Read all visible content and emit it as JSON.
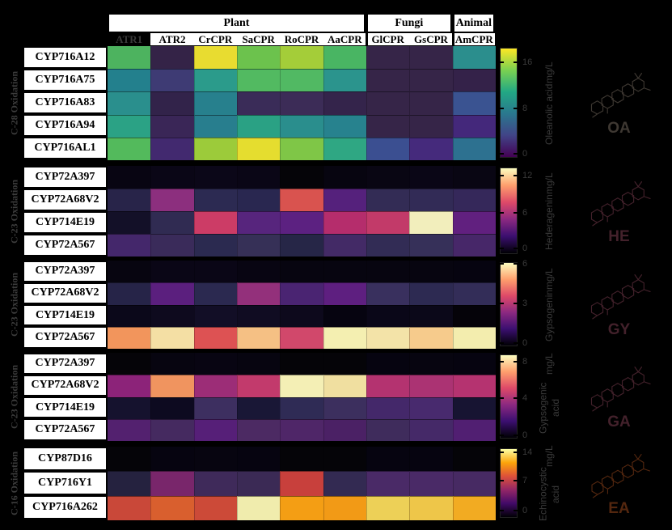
{
  "header": {
    "groups": [
      {
        "label": "Plant",
        "span": 6
      },
      {
        "label": "Fungi",
        "span": 2
      },
      {
        "label": "Animal",
        "span": 1
      }
    ],
    "columns": [
      "ATR1",
      "ATR2",
      "CrCPR",
      "SaCPR",
      "RoCPR",
      "AaCPR",
      "GlCPR",
      "GsCPR",
      "AmCPR"
    ],
    "highlighted_column": "ATR1"
  },
  "blocks": [
    {
      "group_label": "C-28 Oxidation",
      "rows": [
        "CYP716A12",
        "CYP716A75",
        "CYP716A83",
        "CYP716A94",
        "CYP716AL1"
      ],
      "cell_colors": [
        [
          "#4db35f",
          "#342347",
          "#e8dc30",
          "#6cc24d",
          "#a4cd39",
          "#49b563",
          "#362548",
          "#362548",
          "#2b8e8d"
        ],
        [
          "#23808d",
          "#3e3b74",
          "#2b9b8b",
          "#52ba61",
          "#51b963",
          "#2b948d",
          "#362548",
          "#362548",
          "#342249"
        ],
        [
          "#2a8f8d",
          "#32234a",
          "#27808d",
          "#3a2c58",
          "#3c2c57",
          "#34244b",
          "#362548",
          "#362548",
          "#3a5391"
        ],
        [
          "#2ba285",
          "#3a2657",
          "#287e8e",
          "#2aa184",
          "#2a8e8d",
          "#27828e",
          "#362548",
          "#362548",
          "#44287b"
        ],
        [
          "#53ba5c",
          "#42296f",
          "#9ccb3a",
          "#e5dd2f",
          "#7fc647",
          "#2fa783",
          "#3b4f91",
          "#452a7c",
          "#2d7190"
        ]
      ],
      "colorbar": {
        "colormap": "viridis",
        "tick_labels": [
          "16",
          "8",
          "0"
        ],
        "label_line1": "Oleanolic acid",
        "label_line2": "mg/L"
      },
      "structure": {
        "abbr": "OA",
        "ink": "#3e3832"
      }
    },
    {
      "group_label": "C-23 Oxidation",
      "rows": [
        "CYP72A397",
        "CYP72A68V2",
        "CYP714E19",
        "CYP72A567"
      ],
      "cell_colors": [
        [
          "#080512",
          "#0a0616",
          "#0b0718",
          "#0a0616",
          "#050408",
          "#070510",
          "#090613",
          "#0a0616",
          "#090613"
        ],
        [
          "#282449",
          "#8c2f7e",
          "#2c2a52",
          "#292750",
          "#d9534f",
          "#55217c",
          "#332c55",
          "#322b56",
          "#35285a"
        ],
        [
          "#131028",
          "#302b52",
          "#cc3c66",
          "#57257d",
          "#5c2181",
          "#b52d6c",
          "#c23a69",
          "#f2eebc",
          "#61207f"
        ],
        [
          "#44276b",
          "#3a2b5a",
          "#2b2a50",
          "#363057",
          "#262647",
          "#432a66",
          "#322c55",
          "#363059",
          "#472769"
        ]
      ],
      "colorbar": {
        "colormap": "magma",
        "tick_labels": [
          "12",
          "6",
          "0"
        ],
        "label_line1": "Hederagenin",
        "label_line2": "mg/L"
      },
      "structure": {
        "abbr": "HE",
        "ink": "#43212b"
      }
    },
    {
      "group_label": "C-23 Oxidation",
      "rows": [
        "CYP72A397",
        "CYP72A68V2",
        "CYP714E19",
        "CYP72A567"
      ],
      "cell_colors": [
        [
          "#070510",
          "#0a0616",
          "#0a0616",
          "#080512",
          "#070510",
          "#070510",
          "#070510",
          "#070510",
          "#060410"
        ],
        [
          "#262448",
          "#5b1f7e",
          "#2b2950",
          "#93307b",
          "#4a2472",
          "#5e1f80",
          "#39305e",
          "#2d2a52",
          "#332d58"
        ],
        [
          "#0b081a",
          "#0e0a1e",
          "#120e26",
          "#100c22",
          "#0d091c",
          "#060410",
          "#0a0718",
          "#0b0819",
          "#050309"
        ],
        [
          "#f2955c",
          "#f4dfa4",
          "#dd5253",
          "#f5c084",
          "#d1486b",
          "#f4efb1",
          "#f3e3a8",
          "#f6cb8c",
          "#f3edae"
        ]
      ],
      "colorbar": {
        "colormap": "magma",
        "tick_labels": [
          "6",
          "3",
          "0"
        ],
        "label_line1": "Gypsogenin",
        "label_line2": "mg/L"
      },
      "structure": {
        "abbr": "GY",
        "ink": "#43212b"
      }
    },
    {
      "group_label": "C-23 Oxidation",
      "rows": [
        "CYP72A397",
        "CYP72A68V2",
        "CYP714E19",
        "CYP72A567"
      ],
      "cell_colors": [
        [
          "#050408",
          "#070510",
          "#080512",
          "#070510",
          "#050408",
          "#050408",
          "#060410",
          "#070510",
          "#060410"
        ],
        [
          "#8c2379",
          "#f0945f",
          "#9c2d77",
          "#c23a6c",
          "#f4efb5",
          "#f0dfa0",
          "#b43370",
          "#ab3373",
          "#b53370"
        ],
        [
          "#15122e",
          "#0d0a20",
          "#3d2f60",
          "#191736",
          "#2f2b55",
          "#3c2f5e",
          "#44286a",
          "#482a6e",
          "#171432"
        ],
        [
          "#53216f",
          "#452a60",
          "#561f78",
          "#4c2a63",
          "#4f2668",
          "#4b2165",
          "#3f2c5c",
          "#452968",
          "#511f72"
        ]
      ],
      "colorbar": {
        "colormap": "magma",
        "tick_labels": [
          "8",
          "4",
          "0"
        ],
        "label_line1": "Gypsogenic acid",
        "label_line2": "mg/L"
      },
      "structure": {
        "abbr": "GA",
        "ink": "#43212b"
      }
    },
    {
      "group_label": "C-16 Oxidation",
      "rows": [
        "CYP87D16",
        "CYP716Y1",
        "CYP716A262"
      ],
      "cell_colors": [
        [
          "#050408",
          "#060410",
          "#070510",
          "#060410",
          "#050408",
          "#050408",
          "#060410",
          "#060410",
          "#050408"
        ],
        [
          "#25223f",
          "#79266b",
          "#3f2a5a",
          "#3b2a55",
          "#c8403c",
          "#332a52",
          "#4a2a67",
          "#4a2a67",
          "#472a63"
        ],
        [
          "#c94839",
          "#d95f2e",
          "#cc4a38",
          "#f0ecad",
          "#f49e14",
          "#f29a16",
          "#edd057",
          "#eec649",
          "#f2ab22"
        ]
      ],
      "colorbar": {
        "colormap": "inferno",
        "tick_labels": [
          "14",
          "7",
          "0"
        ],
        "label_line1": "Echinocystic acid",
        "label_line2": "mg/L"
      },
      "structure": {
        "abbr": "EA",
        "ink": "#54270f"
      }
    }
  ],
  "colors": {
    "background": "#000000",
    "dim_label_gray": "#3a3a3a",
    "box_white": "#ffffff",
    "box_text": "#000000",
    "colormaps": {
      "viridis": [
        "#440154",
        "#414487",
        "#2a788e",
        "#22a884",
        "#7ad151",
        "#fde725"
      ],
      "magma": [
        "#000004",
        "#3b0f70",
        "#8c2981",
        "#de4968",
        "#fe9f6d",
        "#fcfdbf"
      ],
      "inferno": [
        "#000004",
        "#420a68",
        "#932667",
        "#dd513a",
        "#fca50a",
        "#fcffa4"
      ]
    }
  },
  "chart_data": [
    {
      "type": "heatmap",
      "title": "Oleanolic acid (mg/L) — C-28 Oxidation",
      "x": [
        "ATR1",
        "ATR2",
        "CrCPR",
        "SaCPR",
        "RoCPR",
        "AaCPR",
        "GlCPR",
        "GsCPR",
        "AmCPR"
      ],
      "y": [
        "CYP716A12",
        "CYP716A75",
        "CYP716A83",
        "CYP716A94",
        "CYP716AL1"
      ],
      "values": [
        [
          12.0,
          0.8,
          16.3,
          13.3,
          14.8,
          11.7,
          0.8,
          0.8,
          8.7
        ],
        [
          7.7,
          3.4,
          9.5,
          12.2,
          12.2,
          9.0,
          0.8,
          0.8,
          0.7
        ],
        [
          8.7,
          0.7,
          7.7,
          1.7,
          1.7,
          0.9,
          0.8,
          0.8,
          4.6
        ],
        [
          9.9,
          1.5,
          7.5,
          9.9,
          8.7,
          7.8,
          0.8,
          0.8,
          2.0
        ],
        [
          12.4,
          1.7,
          14.5,
          16.3,
          13.6,
          10.2,
          4.4,
          2.2,
          6.5
        ]
      ],
      "colormap": "viridis",
      "vmin": 0,
      "vmax": 17,
      "ticks": [
        0,
        8,
        16
      ],
      "unit": "mg/L"
    },
    {
      "type": "heatmap",
      "title": "Hederagenin (mg/L) — C-23 Oxidation",
      "x": [
        "ATR1",
        "ATR2",
        "CrCPR",
        "SaCPR",
        "RoCPR",
        "AaCPR",
        "GlCPR",
        "GsCPR",
        "AmCPR"
      ],
      "y": [
        "CYP72A397",
        "CYP72A68V2",
        "CYP714E19",
        "CYP72A567"
      ],
      "values": [
        [
          0.3,
          0.4,
          0.4,
          0.4,
          0.1,
          0.2,
          0.3,
          0.3,
          0.3
        ],
        [
          2.3,
          5.2,
          2.5,
          2.4,
          8.1,
          3.5,
          2.6,
          2.6,
          2.7
        ],
        [
          1.2,
          2.5,
          7.2,
          3.6,
          3.8,
          6.5,
          6.9,
          12.7,
          3.9
        ],
        [
          3.0,
          2.8,
          2.4,
          2.7,
          2.2,
          2.9,
          2.6,
          2.7,
          3.1
        ]
      ],
      "colormap": "magma",
      "vmin": 0,
      "vmax": 13,
      "ticks": [
        0,
        6,
        12
      ],
      "unit": "mg/L"
    },
    {
      "type": "heatmap",
      "title": "Gypsogenin (mg/L) — C-23 Oxidation",
      "x": [
        "ATR1",
        "ATR2",
        "CrCPR",
        "SaCPR",
        "RoCPR",
        "AaCPR",
        "GlCPR",
        "GsCPR",
        "AmCPR"
      ],
      "y": [
        "CYP72A397",
        "CYP72A68V2",
        "CYP714E19",
        "CYP72A567"
      ],
      "values": [
        [
          0.1,
          0.15,
          0.15,
          0.1,
          0.1,
          0.1,
          0.1,
          0.1,
          0.05
        ],
        [
          1.1,
          1.8,
          1.2,
          2.7,
          1.7,
          1.9,
          1.4,
          1.2,
          1.3
        ],
        [
          0.3,
          0.35,
          0.45,
          0.4,
          0.33,
          0.15,
          0.28,
          0.3,
          0.05
        ],
        [
          5.0,
          6.0,
          4.2,
          5.7,
          3.8,
          6.3,
          6.1,
          5.8,
          6.2
        ]
      ],
      "colormap": "magma",
      "vmin": 0,
      "vmax": 6.5,
      "ticks": [
        0,
        3,
        6
      ],
      "unit": "mg/L"
    },
    {
      "type": "heatmap",
      "title": "Gypsogenic acid (mg/L) — C-23 Oxidation",
      "x": [
        "ATR1",
        "ATR2",
        "CrCPR",
        "SaCPR",
        "RoCPR",
        "AaCPR",
        "GlCPR",
        "GsCPR",
        "AmCPR"
      ],
      "y": [
        "CYP72A397",
        "CYP72A68V2",
        "CYP714E19",
        "CYP72A567"
      ],
      "values": [
        [
          0.1,
          0.1,
          0.1,
          0.1,
          0.05,
          0.05,
          0.1,
          0.1,
          0.1
        ],
        [
          3.5,
          6.7,
          3.8,
          4.6,
          8.4,
          8.1,
          4.3,
          4.1,
          4.3
        ],
        [
          0.7,
          0.45,
          1.8,
          0.8,
          1.5,
          1.75,
          2.1,
          2.2,
          0.75
        ],
        [
          2.4,
          2.0,
          2.4,
          2.2,
          2.3,
          2.3,
          1.9,
          2.1,
          2.4
        ]
      ],
      "colormap": "magma",
      "vmin": 0,
      "vmax": 8.7,
      "ticks": [
        0,
        4,
        8
      ],
      "unit": "mg/L"
    },
    {
      "type": "heatmap",
      "title": "Echinocystic acid (mg/L) — C-16 Oxidation",
      "x": [
        "ATR1",
        "ATR2",
        "CrCPR",
        "SaCPR",
        "RoCPR",
        "AaCPR",
        "GlCPR",
        "GsCPR",
        "AmCPR"
      ],
      "y": [
        "CYP87D16",
        "CYP716Y1",
        "CYP716A262"
      ],
      "values": [
        [
          0.1,
          0.1,
          0.1,
          0.1,
          0.05,
          0.05,
          0.1,
          0.1,
          0.05
        ],
        [
          2.0,
          5.0,
          2.9,
          2.7,
          8.3,
          2.5,
          3.2,
          3.2,
          3.0
        ],
        [
          8.5,
          9.4,
          8.7,
          14.6,
          11.7,
          11.6,
          13.5,
          13.2,
          12.1
        ]
      ],
      "colormap": "inferno",
      "vmin": 0,
      "vmax": 15,
      "ticks": [
        0,
        7,
        14
      ],
      "unit": "mg/L"
    }
  ]
}
